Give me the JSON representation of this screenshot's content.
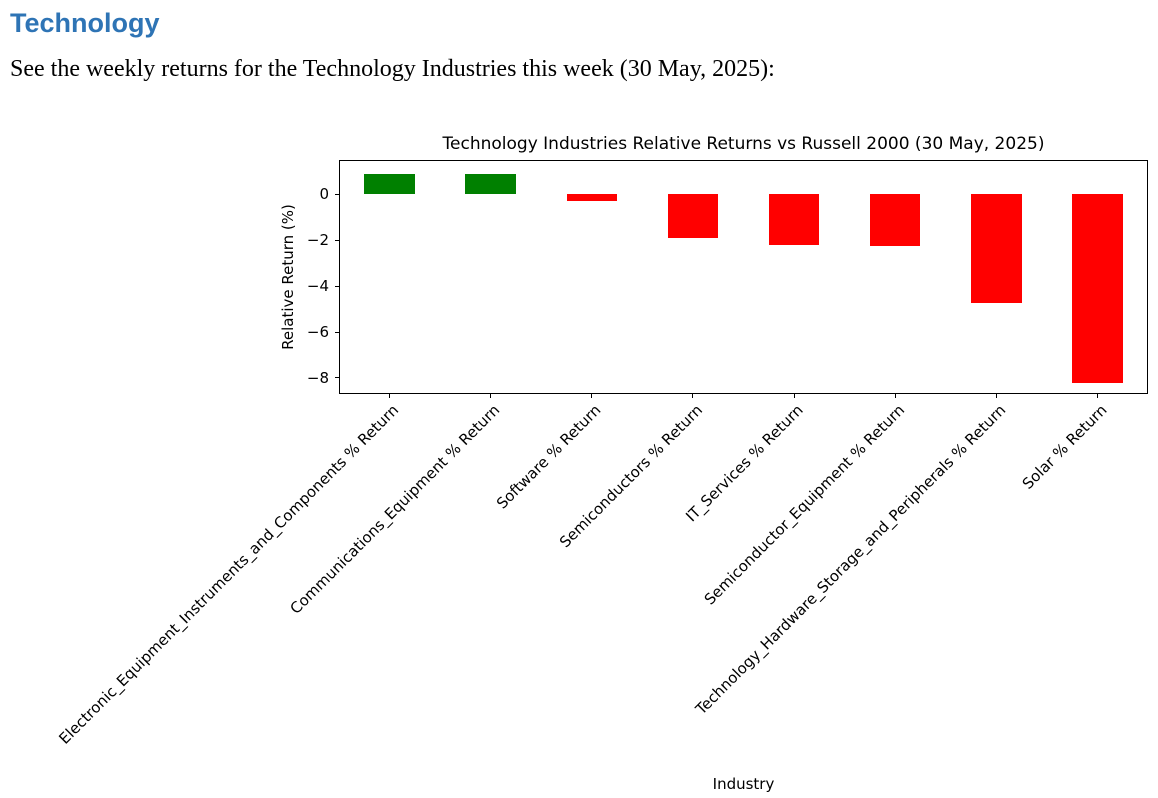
{
  "document": {
    "heading": "Technology",
    "intro": "See the weekly returns for the Technology Industries this week (30 May, 2025):"
  },
  "colors": {
    "heading": "#2E74B5",
    "positive_bar": "#008000",
    "negative_bar": "#FF0000",
    "axis": "#000000",
    "text": "#000000"
  },
  "chart_data": {
    "type": "bar",
    "title": "Technology Industries Relative Returns vs Russell 2000 (30 May, 2025)",
    "xlabel": "Industry",
    "ylabel": "Relative Return (%)",
    "categories": [
      "Electronic_Equipment_Instruments_and_Components % Return",
      "Communications_Equipment % Return",
      "Software % Return",
      "Semiconductors % Return",
      "IT_Services % Return",
      "Semiconductor_Equipment % Return",
      "Technology_Hardware_Storage_and_Peripherals % Return",
      "Solar % Return"
    ],
    "values": [
      0.9,
      0.9,
      -0.3,
      -1.9,
      -2.2,
      -2.25,
      -4.75,
      -8.2
    ],
    "bar_color_rule": "green if positive, red if negative",
    "ylim": [
      -8.7,
      1.5
    ],
    "yticks": [
      {
        "value": 0,
        "label": "0"
      },
      {
        "value": -2,
        "label": "−2"
      },
      {
        "value": -4,
        "label": "−4"
      },
      {
        "value": -6,
        "label": "−6"
      },
      {
        "value": -8,
        "label": "−8"
      }
    ],
    "grid": false,
    "legend": null,
    "bar_width_fraction": 0.5,
    "x_tick_rotation_deg": 45
  }
}
